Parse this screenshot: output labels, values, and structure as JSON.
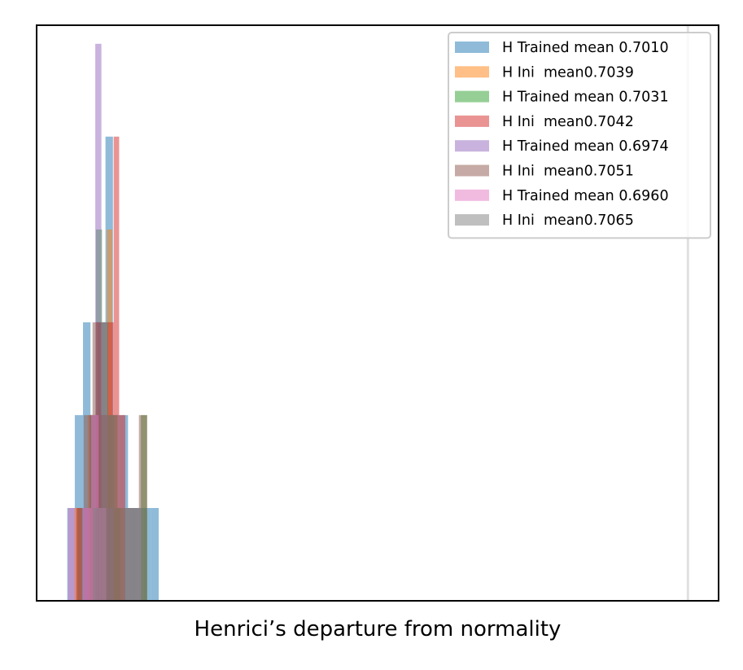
{
  "chart_data": {
    "type": "histogram",
    "xlabel": "Henrici’s departure from normality",
    "ylabel": "",
    "title": "",
    "xlim": [
      0,
      1
    ],
    "ylim": [
      0,
      6.2
    ],
    "x_ticks_visible": false,
    "y_ticks_visible": false,
    "grid": false,
    "legend_position": "upper right",
    "vertical_reference_line": {
      "x": 0.955,
      "color": "#e0e0e0"
    },
    "bar_alpha": 0.5,
    "series": [
      {
        "name": "H Trained mean 0.7010",
        "color": "#1f77b4",
        "bins": [
          {
            "x0": 0.045,
            "x1": 0.056,
            "count": 1
          },
          {
            "x0": 0.056,
            "x1": 0.068,
            "count": 2
          },
          {
            "x0": 0.068,
            "x1": 0.079,
            "count": 3
          },
          {
            "x0": 0.079,
            "x1": 0.09,
            "count": 2
          },
          {
            "x0": 0.09,
            "x1": 0.101,
            "count": 3
          },
          {
            "x0": 0.101,
            "x1": 0.112,
            "count": 5
          },
          {
            "x0": 0.112,
            "x1": 0.123,
            "count": 2
          },
          {
            "x0": 0.123,
            "x1": 0.134,
            "count": 2
          },
          {
            "x0": 0.134,
            "x1": 0.146,
            "count": 1
          },
          {
            "x0": 0.146,
            "x1": 0.157,
            "count": 1
          },
          {
            "x0": 0.157,
            "x1": 0.168,
            "count": 1
          },
          {
            "x0": 0.168,
            "x1": 0.179,
            "count": 1
          }
        ]
      },
      {
        "name": "H Ini  mean0.7039",
        "color": "#ff7f0e",
        "bins": [
          {
            "x0": 0.055,
            "x1": 0.065,
            "count": 1
          },
          {
            "x0": 0.075,
            "x1": 0.085,
            "count": 2
          },
          {
            "x0": 0.095,
            "x1": 0.103,
            "count": 3
          },
          {
            "x0": 0.103,
            "x1": 0.111,
            "count": 4
          },
          {
            "x0": 0.111,
            "x1": 0.119,
            "count": 2
          },
          {
            "x0": 0.119,
            "x1": 0.127,
            "count": 1
          }
        ]
      },
      {
        "name": "H Trained mean 0.7031",
        "color": "#2ca02c",
        "bins": [
          {
            "x0": 0.078,
            "x1": 0.087,
            "count": 2
          },
          {
            "x0": 0.087,
            "x1": 0.096,
            "count": 4
          },
          {
            "x0": 0.096,
            "x1": 0.105,
            "count": 3
          },
          {
            "x0": 0.105,
            "x1": 0.114,
            "count": 2
          },
          {
            "x0": 0.114,
            "x1": 0.123,
            "count": 1
          },
          {
            "x0": 0.153,
            "x1": 0.162,
            "count": 2
          }
        ]
      },
      {
        "name": "H Ini  mean0.7042",
        "color": "#d62728",
        "bins": [
          {
            "x0": 0.058,
            "x1": 0.067,
            "count": 1
          },
          {
            "x0": 0.087,
            "x1": 0.095,
            "count": 3
          },
          {
            "x0": 0.095,
            "x1": 0.104,
            "count": 2
          },
          {
            "x0": 0.104,
            "x1": 0.113,
            "count": 3
          },
          {
            "x0": 0.113,
            "x1": 0.121,
            "count": 5
          },
          {
            "x0": 0.121,
            "x1": 0.13,
            "count": 2
          }
        ]
      },
      {
        "name": "H Trained mean 0.6974",
        "color": "#9467bd",
        "bins": [
          {
            "x0": 0.068,
            "x1": 0.077,
            "count": 1
          },
          {
            "x0": 0.077,
            "x1": 0.086,
            "count": 2
          },
          {
            "x0": 0.086,
            "x1": 0.095,
            "count": 6
          },
          {
            "x0": 0.095,
            "x1": 0.104,
            "count": 3
          },
          {
            "x0": 0.104,
            "x1": 0.113,
            "count": 1
          }
        ]
      },
      {
        "name": "H Ini  mean0.7051",
        "color": "#8c564b",
        "bins": [
          {
            "x0": 0.06,
            "x1": 0.069,
            "count": 1
          },
          {
            "x0": 0.069,
            "x1": 0.082,
            "count": 2
          },
          {
            "x0": 0.082,
            "x1": 0.094,
            "count": 3
          },
          {
            "x0": 0.094,
            "x1": 0.118,
            "count": 2
          },
          {
            "x0": 0.118,
            "x1": 0.15,
            "count": 1
          },
          {
            "x0": 0.15,
            "x1": 0.162,
            "count": 2
          }
        ]
      },
      {
        "name": "H Trained mean 0.6960",
        "color": "#e377c2",
        "bins": [
          {
            "x0": 0.046,
            "x1": 0.057,
            "count": 1
          },
          {
            "x0": 0.068,
            "x1": 0.08,
            "count": 1
          },
          {
            "x0": 0.08,
            "x1": 0.091,
            "count": 2
          },
          {
            "x0": 0.091,
            "x1": 0.102,
            "count": 1
          }
        ]
      },
      {
        "name": "H Ini  mean0.7065",
        "color": "#7f7f7f",
        "bins": [
          {
            "x0": 0.083,
            "x1": 0.095,
            "count": 1
          },
          {
            "x0": 0.095,
            "x1": 0.107,
            "count": 2
          },
          {
            "x0": 0.107,
            "x1": 0.119,
            "count": 2
          },
          {
            "x0": 0.119,
            "x1": 0.131,
            "count": 1
          },
          {
            "x0": 0.131,
            "x1": 0.143,
            "count": 1
          },
          {
            "x0": 0.143,
            "x1": 0.155,
            "count": 1
          }
        ]
      }
    ]
  }
}
